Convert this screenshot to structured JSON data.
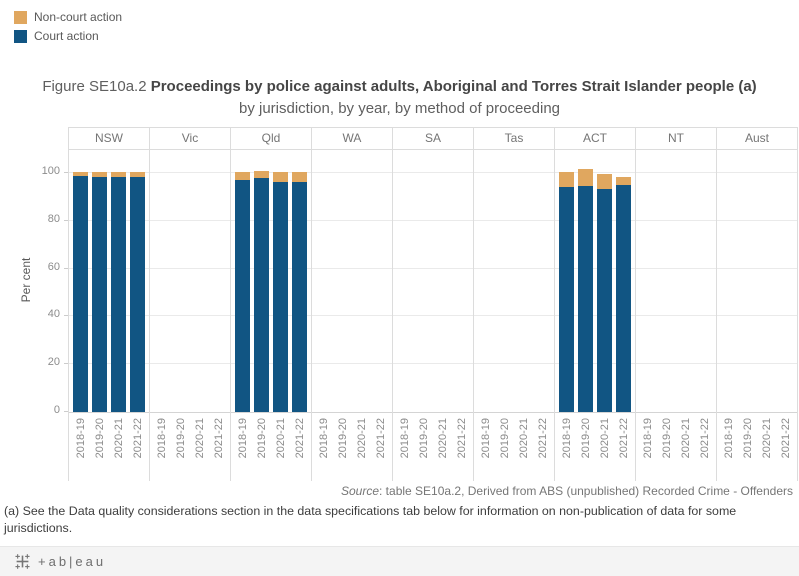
{
  "legend": {
    "items": [
      {
        "label": "Non-court action",
        "color": "#e0a75f"
      },
      {
        "label": "Court action",
        "color": "#115583"
      }
    ]
  },
  "title": {
    "figure_label": "Figure SE10a.2",
    "main": "Proceedings by police against adults, Aboriginal and Torres Strait Islander people (a)",
    "subtitle": "by jurisdiction, by year, by method of proceeding"
  },
  "chart_data": {
    "type": "bar",
    "stacked": true,
    "title": "Figure SE10a.2 Proceedings by police against adults, Aboriginal and Torres Strait Islander people (a) by jurisdiction, by year, by method of proceeding",
    "ylabel": "Per cent",
    "ylim": [
      0,
      110
    ],
    "yticks": [
      0,
      20,
      40,
      60,
      80,
      100
    ],
    "grid": true,
    "legend_position": "top-left",
    "categories": [
      "2018-19",
      "2019-20",
      "2020-21",
      "2021-22"
    ],
    "series": [
      {
        "name": "Non-court action",
        "key": "noncourt",
        "color": "#e0a75f"
      },
      {
        "name": "Court action",
        "key": "court",
        "color": "#115583"
      }
    ],
    "panels": [
      {
        "name": "NSW",
        "court": [
          98.6,
          98.5,
          98.3,
          98.5
        ],
        "noncourt": [
          1.8,
          1.9,
          2.0,
          1.9
        ]
      },
      {
        "name": "Vic",
        "court": null,
        "noncourt": null
      },
      {
        "name": "Qld",
        "court": [
          97.0,
          97.9,
          96.2,
          96.2
        ],
        "noncourt": [
          3.5,
          3.0,
          4.3,
          4.3
        ]
      },
      {
        "name": "WA",
        "court": null,
        "noncourt": null
      },
      {
        "name": "SA",
        "court": null,
        "noncourt": null
      },
      {
        "name": "Tas",
        "court": null,
        "noncourt": null
      },
      {
        "name": "ACT",
        "court": [
          94.2,
          94.6,
          93.3,
          95.0
        ],
        "noncourt": [
          6.2,
          7.2,
          6.4,
          3.4
        ]
      },
      {
        "name": "NT",
        "court": null,
        "noncourt": null
      },
      {
        "name": "Aust",
        "court": null,
        "noncourt": null
      }
    ]
  },
  "source": {
    "label": "Source",
    "text": ": table SE10a.2, Derived from ABS (unpublished) Recorded Crime - Offenders"
  },
  "footnote": "(a) See the Data quality considerations section in the data specifications tab below for information on non-publication of data for some jurisdictions.",
  "footer": {
    "logo": "tableau-sparkle-icon",
    "wordmark": "+ab|eau"
  }
}
